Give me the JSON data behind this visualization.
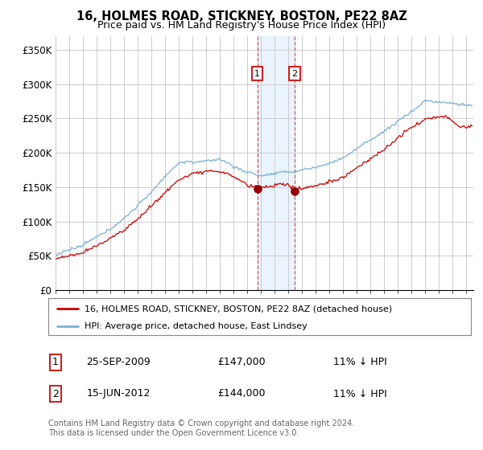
{
  "title": "16, HOLMES ROAD, STICKNEY, BOSTON, PE22 8AZ",
  "subtitle": "Price paid vs. HM Land Registry's House Price Index (HPI)",
  "ylabel_ticks": [
    "£0",
    "£50K",
    "£100K",
    "£150K",
    "£200K",
    "£250K",
    "£300K",
    "£350K"
  ],
  "ytick_values": [
    0,
    50000,
    100000,
    150000,
    200000,
    250000,
    300000,
    350000
  ],
  "ylim": [
    0,
    370000
  ],
  "xlim_start": 1995.0,
  "xlim_end": 2025.5,
  "hpi_color": "#7ab0d4",
  "price_color": "#cc0000",
  "sale1_date": 2009.73,
  "sale1_price": 147000,
  "sale2_date": 2012.46,
  "sale2_price": 144000,
  "shade_color": "#ddeeff",
  "shade_alpha": 0.6,
  "vline_color": "#dd4444",
  "legend_label1": "16, HOLMES ROAD, STICKNEY, BOSTON, PE22 8AZ (detached house)",
  "legend_label2": "HPI: Average price, detached house, East Lindsey",
  "table_row1": [
    "1",
    "25-SEP-2009",
    "£147,000",
    "11% ↓ HPI"
  ],
  "table_row2": [
    "2",
    "15-JUN-2012",
    "£144,000",
    "11% ↓ HPI"
  ],
  "footnote": "Contains HM Land Registry data © Crown copyright and database right 2024.\nThis data is licensed under the Open Government Licence v3.0.",
  "background_color": "#ffffff",
  "grid_color": "#cccccc"
}
